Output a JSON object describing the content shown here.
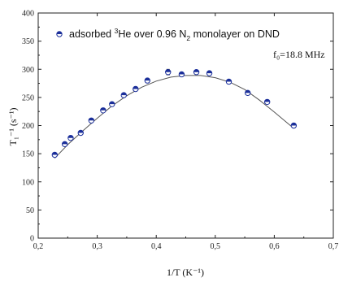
{
  "chart_data": {
    "type": "scatter",
    "xlabel": "1/T (K⁻¹)",
    "ylabel": "T₁⁻¹ (s⁻¹)",
    "xlim": [
      0.2,
      0.7
    ],
    "ylim": [
      0,
      400
    ],
    "x_ticks": [
      0.2,
      0.3,
      0.4,
      0.5,
      0.6,
      0.7
    ],
    "x_tick_labels": [
      "0,2",
      "0,3",
      "0,4",
      "0,5",
      "0,6",
      "0,7"
    ],
    "y_ticks": [
      0,
      50,
      100,
      150,
      200,
      250,
      300,
      350,
      400
    ],
    "y_tick_labels": [
      "0",
      "50",
      "100",
      "150",
      "200",
      "250",
      "300",
      "350",
      "400"
    ],
    "grid": false,
    "legend_position": "top",
    "annotation": "f₀=18.8 MHz",
    "legend": {
      "prefix": "adsorbed ",
      "sup": "3",
      "middle": "He over 0.96 N",
      "sub": "2",
      "suffix": " monolayer on DND"
    },
    "series": [
      {
        "kind": "points",
        "color": "#1b2f9a",
        "x": [
          0.228,
          0.245,
          0.255,
          0.272,
          0.29,
          0.31,
          0.325,
          0.345,
          0.365,
          0.385,
          0.42,
          0.443,
          0.468,
          0.49,
          0.523,
          0.555,
          0.588,
          0.633
        ],
        "y": [
          148,
          167,
          178,
          187,
          209,
          227,
          238,
          254,
          265,
          280,
          295,
          291,
          295,
          293,
          278,
          258,
          242,
          200
        ],
        "yerr": [
          3,
          3,
          3,
          3,
          3,
          3,
          3,
          3,
          4,
          4,
          5,
          3,
          3,
          3,
          3,
          3,
          3,
          4
        ]
      },
      {
        "kind": "fit",
        "color": "#555555",
        "x": [
          0.228,
          0.25,
          0.275,
          0.3,
          0.325,
          0.35,
          0.375,
          0.4,
          0.425,
          0.45,
          0.475,
          0.5,
          0.525,
          0.55,
          0.575,
          0.6,
          0.633
        ],
        "y": [
          142,
          166,
          190,
          213,
          235,
          253,
          268,
          279,
          286,
          289,
          289,
          285,
          277,
          264,
          245,
          224,
          195
        ]
      }
    ]
  }
}
